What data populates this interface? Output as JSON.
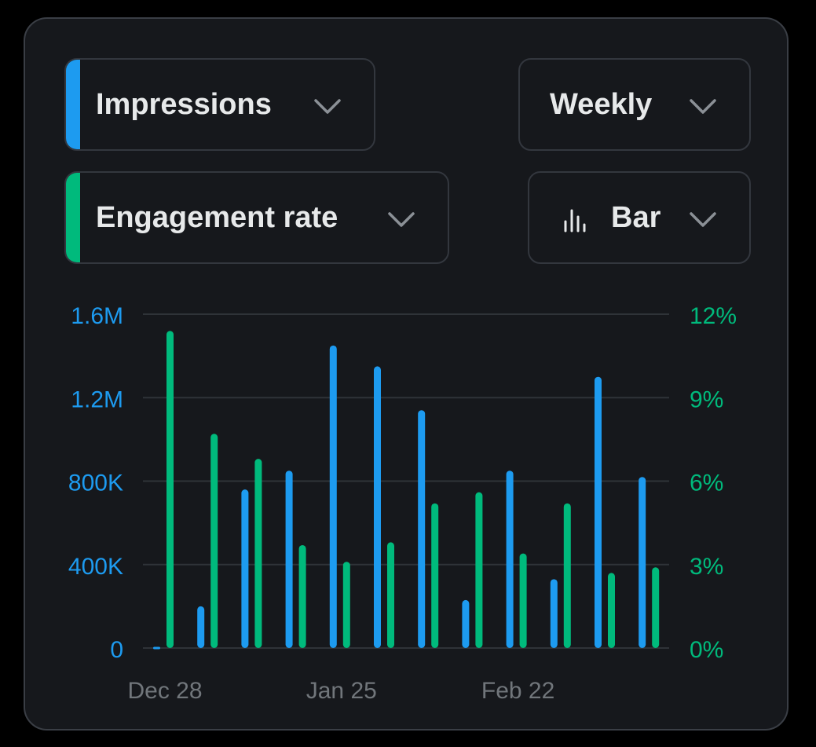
{
  "controls": {
    "metric_primary": {
      "label": "Impressions",
      "color": "#1d9bf0"
    },
    "metric_secondary": {
      "label": "Engagement rate",
      "color": "#00ba7c"
    },
    "interval": {
      "label": "Weekly"
    },
    "chart_type": {
      "label": "Bar",
      "icon": "bar-chart-icon"
    }
  },
  "chart_data": {
    "type": "bar",
    "grid": true,
    "x_tick_labels": [
      "Dec 28",
      "Jan 25",
      "Feb 22"
    ],
    "left_axis": {
      "ylim": [
        0,
        1600000
      ],
      "ticks": [
        "0",
        "400K",
        "800K",
        "1.2M",
        "1.6M"
      ],
      "color": "#1d9bf0"
    },
    "right_axis": {
      "ylim": [
        0,
        12
      ],
      "ticks": [
        "0%",
        "3%",
        "6%",
        "9%",
        "12%"
      ],
      "color": "#00ba7c"
    },
    "series": [
      {
        "name": "Impressions",
        "axis": "left",
        "color": "#1d9bf0",
        "values": [
          0,
          200000,
          760000,
          850000,
          1450000,
          1350000,
          1140000,
          230000,
          850000,
          330000,
          1300000,
          820000
        ]
      },
      {
        "name": "Engagement rate",
        "axis": "right",
        "color": "#00ba7c",
        "values": [
          11.4,
          7.7,
          6.8,
          3.7,
          3.1,
          3.8,
          5.2,
          5.6,
          3.4,
          5.2,
          2.7,
          2.9
        ]
      }
    ]
  }
}
